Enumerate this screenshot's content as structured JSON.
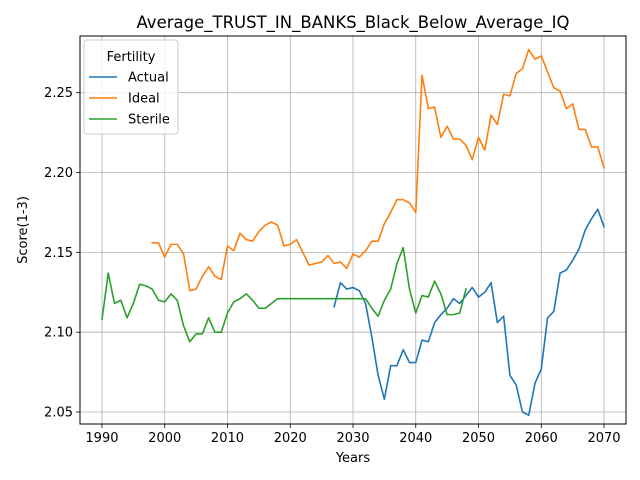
{
  "chart_data": {
    "type": "line",
    "title": "Average_TRUST_IN_BANKS_Black_Below_Average_IQ",
    "xlabel": "Years",
    "ylabel": "Score(1-3)",
    "xlim": [
      1986.5,
      2073.5
    ],
    "ylim": [
      2.0425,
      2.2855
    ],
    "xticks": [
      1990,
      2000,
      2010,
      2020,
      2030,
      2040,
      2050,
      2060,
      2070
    ],
    "yticks": [
      2.05,
      2.1,
      2.15,
      2.2,
      2.25
    ],
    "ytick_labels": [
      "2.05",
      "2.10",
      "2.15",
      "2.20",
      "2.25"
    ],
    "grid": true,
    "legend": {
      "title": "Fertility",
      "placement": "top-left"
    },
    "series": [
      {
        "name": "Actual",
        "color": "#1f77b4",
        "x": [
          2027,
          2028,
          2029,
          2030,
          2031,
          2032,
          2033,
          2034,
          2035,
          2036,
          2037,
          2038,
          2039,
          2040,
          2041,
          2042,
          2043,
          2044,
          2045,
          2046,
          2047,
          2048,
          2049,
          2050,
          2051,
          2052,
          2053,
          2054,
          2055,
          2056,
          2057,
          2058,
          2059,
          2060,
          2061,
          2062,
          2063,
          2064,
          2065,
          2066,
          2067,
          2068,
          2069,
          2070
        ],
        "y": [
          2.116,
          2.131,
          2.127,
          2.128,
          2.126,
          2.118,
          2.097,
          2.073,
          2.058,
          2.079,
          2.079,
          2.089,
          2.081,
          2.081,
          2.095,
          2.094,
          2.106,
          2.111,
          2.115,
          2.121,
          2.118,
          2.123,
          2.128,
          2.122,
          2.125,
          2.131,
          2.106,
          2.11,
          2.073,
          2.067,
          2.05,
          2.048,
          2.068,
          2.077,
          2.109,
          2.113,
          2.137,
          2.139,
          2.145,
          2.152,
          2.164,
          2.171,
          2.177,
          2.166
        ]
      },
      {
        "name": "Ideal",
        "color": "#ff7f0e",
        "x": [
          1998,
          1999,
          2000,
          2001,
          2002,
          2003,
          2004,
          2005,
          2006,
          2007,
          2008,
          2009,
          2010,
          2011,
          2012,
          2013,
          2014,
          2015,
          2016,
          2017,
          2018,
          2019,
          2020,
          2021,
          2022,
          2023,
          2024,
          2025,
          2026,
          2027,
          2028,
          2029,
          2030,
          2031,
          2032,
          2033,
          2034,
          2035,
          2036,
          2037,
          2038,
          2039,
          2040,
          2041,
          2042,
          2043,
          2044,
          2045,
          2046,
          2047,
          2048,
          2049,
          2050,
          2051,
          2052,
          2053,
          2054,
          2055,
          2056,
          2057,
          2058,
          2059,
          2060,
          2061,
          2062,
          2063,
          2064,
          2065,
          2066,
          2067,
          2068,
          2069,
          2070
        ],
        "y": [
          2.156,
          2.156,
          2.147,
          2.155,
          2.155,
          2.149,
          2.126,
          2.127,
          2.135,
          2.141,
          2.135,
          2.133,
          2.154,
          2.151,
          2.162,
          2.158,
          2.157,
          2.163,
          2.167,
          2.169,
          2.167,
          2.154,
          2.155,
          2.158,
          2.15,
          2.142,
          2.143,
          2.144,
          2.148,
          2.143,
          2.144,
          2.14,
          2.149,
          2.147,
          2.151,
          2.157,
          2.157,
          2.168,
          2.175,
          2.183,
          2.183,
          2.181,
          2.175,
          2.261,
          2.24,
          2.241,
          2.222,
          2.229,
          2.221,
          2.221,
          2.217,
          2.208,
          2.222,
          2.214,
          2.236,
          2.23,
          2.249,
          2.248,
          2.262,
          2.265,
          2.277,
          2.271,
          2.273,
          2.263,
          2.253,
          2.251,
          2.24,
          2.243,
          2.227,
          2.227,
          2.216,
          2.216,
          2.203
        ]
      },
      {
        "name": "Sterile",
        "color": "#2ca02c",
        "x": [
          1990,
          1991,
          1992,
          1993,
          1994,
          1995,
          1996,
          1997,
          1998,
          1999,
          2000,
          2001,
          2002,
          2003,
          2004,
          2005,
          2006,
          2007,
          2008,
          2009,
          2010,
          2011,
          2012,
          2013,
          2014,
          2015,
          2016,
          2017,
          2018,
          2019,
          2020,
          2021,
          2022,
          2023,
          2024,
          2025,
          2026,
          2027,
          2028,
          2029,
          2030,
          2031,
          2032,
          2033,
          2034,
          2035,
          2036,
          2037,
          2038,
          2039,
          2040,
          2041,
          2042,
          2043,
          2044,
          2045,
          2046,
          2047,
          2048
        ],
        "y": [
          2.108,
          2.137,
          2.118,
          2.12,
          2.109,
          2.118,
          2.13,
          2.129,
          2.127,
          2.12,
          2.119,
          2.124,
          2.12,
          2.104,
          2.094,
          2.099,
          2.099,
          2.109,
          2.1,
          2.1,
          2.112,
          2.119,
          2.121,
          2.124,
          2.12,
          2.115,
          2.115,
          2.118,
          2.121,
          2.121,
          2.121,
          2.121,
          2.121,
          2.121,
          2.121,
          2.121,
          2.121,
          2.121,
          2.121,
          2.121,
          2.121,
          2.121,
          2.121,
          2.115,
          2.11,
          2.12,
          2.127,
          2.143,
          2.153,
          2.127,
          2.112,
          2.123,
          2.122,
          2.132,
          2.124,
          2.111,
          2.111,
          2.112,
          2.127
        ]
      }
    ]
  }
}
